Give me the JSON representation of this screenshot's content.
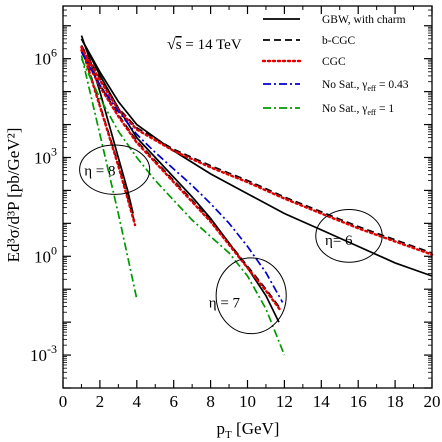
{
  "chart_data": {
    "type": "line",
    "xlabel_main": "p",
    "xlabel_sub": "T",
    "xlabel_unit": " [GeV]",
    "ylabel": "Ed³σ/d³P [pb/GeV²]",
    "xlim": [
      0,
      20
    ],
    "ylim_log10": [
      -4,
      7.6
    ],
    "y_scale": "log",
    "x_ticks": [
      0,
      2,
      4,
      6,
      8,
      10,
      12,
      14,
      16,
      18,
      20
    ],
    "x_tick_labels": [
      "0",
      "2",
      "4",
      "6",
      "8",
      "10",
      "12",
      "14",
      "16",
      "18",
      "20"
    ],
    "y_ticks": [
      {
        "base": "10",
        "exp": "6",
        "log10": 6
      },
      {
        "base": "10",
        "exp": "3",
        "log10": 3
      },
      {
        "base": "10",
        "exp": "0",
        "log10": 0
      },
      {
        "base": "10",
        "exp": "-3",
        "log10": -3
      }
    ],
    "legend_position": "top-right",
    "grid": false,
    "energy_label": {
      "sqrt": "s",
      "rest": " = 14 TeV"
    },
    "series": [
      {
        "name": "GBW, with charm",
        "color": "#000000",
        "dash": "solid",
        "curves": [
          {
            "x": [
              1.0,
              1.5,
              2.0,
              2.5,
              3.0,
              3.5,
              3.8
            ],
            "log10y": [
              6.7,
              5.9,
              5.0,
              4.0,
              3.0,
              2.0,
              1.3
            ]
          },
          {
            "x": [
              1.0,
              2.0,
              3.0,
              4.0,
              5.0,
              6.0,
              7.0,
              8.0,
              9.0,
              10.0,
              11.0,
              11.7
            ],
            "log10y": [
              6.6,
              5.5,
              4.5,
              3.6,
              3.0,
              2.4,
              1.8,
              1.15,
              0.4,
              -0.35,
              -1.2,
              -2.0
            ]
          },
          {
            "x": [
              1.0,
              2.0,
              3.0,
              4.0,
              6.0,
              8.0,
              10.0,
              12.0,
              14.0,
              16.0,
              18.0,
              20.0
            ],
            "log10y": [
              6.6,
              5.6,
              4.7,
              4.0,
              3.2,
              2.5,
              1.9,
              1.3,
              0.8,
              0.3,
              -0.2,
              -0.6
            ]
          }
        ]
      },
      {
        "name": "b-CGC",
        "color": "#000000",
        "dash": "dashed",
        "curves": [
          {
            "x": [
              1.0,
              1.5,
              2.0,
              2.5,
              3.0,
              3.5,
              3.9
            ],
            "log10y": [
              6.4,
              5.5,
              4.6,
              3.7,
              2.8,
              1.8,
              1.0
            ]
          },
          {
            "x": [
              1.0,
              2.0,
              3.0,
              4.0,
              5.0,
              6.0,
              7.0,
              8.0,
              9.0,
              10.0,
              11.0,
              11.8
            ],
            "log10y": [
              6.3,
              5.2,
              4.3,
              3.5,
              2.9,
              2.3,
              1.7,
              1.1,
              0.4,
              -0.3,
              -1.0,
              -1.6
            ]
          },
          {
            "x": [
              1.0,
              2.0,
              3.0,
              4.0,
              6.0,
              8.0,
              10.0,
              12.0,
              14.0,
              16.0,
              18.0,
              20.0
            ],
            "log10y": [
              6.4,
              5.4,
              4.5,
              3.9,
              3.25,
              2.75,
              2.3,
              1.8,
              1.35,
              0.9,
              0.5,
              0.1
            ]
          }
        ]
      },
      {
        "name": "CGC",
        "color": "#e00000",
        "dash": "dotted",
        "curves": [
          {
            "x": [
              1.0,
              1.5,
              2.0,
              2.5,
              3.0,
              3.5,
              3.9
            ],
            "log10y": [
              6.35,
              5.45,
              4.55,
              3.65,
              2.75,
              1.75,
              0.95
            ]
          },
          {
            "x": [
              1.0,
              2.0,
              3.0,
              4.0,
              5.0,
              6.0,
              7.0,
              8.0,
              9.0,
              10.0,
              11.0,
              11.8
            ],
            "log10y": [
              6.25,
              5.15,
              4.25,
              3.45,
              2.85,
              2.25,
              1.65,
              1.05,
              0.35,
              -0.35,
              -1.05,
              -1.65
            ]
          },
          {
            "x": [
              1.0,
              2.0,
              3.0,
              4.0,
              6.0,
              8.0,
              10.0,
              12.0,
              14.0,
              16.0,
              18.0,
              20.0
            ],
            "log10y": [
              6.35,
              5.35,
              4.45,
              3.85,
              3.2,
              2.7,
              2.25,
              1.75,
              1.3,
              0.85,
              0.45,
              0.05
            ]
          }
        ]
      },
      {
        "name": "No Sat., γ",
        "name_sub": "eff",
        "name_rest": " = 0.43",
        "color": "#0000cc",
        "dash": "dashdot",
        "curves": [
          {
            "x": [
              1.0,
              2.0,
              3.0,
              4.0,
              5.0,
              6.0,
              7.0,
              8.0,
              9.0,
              10.0,
              11.0,
              11.9
            ],
            "log10y": [
              6.2,
              5.2,
              4.4,
              3.7,
              3.15,
              2.65,
              2.15,
              1.6,
              1.0,
              0.3,
              -0.5,
              -1.4
            ]
          }
        ]
      },
      {
        "name": "No Sat., γ",
        "name_sub": "eff",
        "name_rest": " = 1",
        "color": "#009900",
        "dash": "dashdot",
        "curves": [
          {
            "x": [
              1.0,
              1.5,
              2.0,
              2.5,
              3.0,
              3.5,
              4.0
            ],
            "log10y": [
              6.1,
              4.9,
              3.7,
              2.5,
              1.3,
              0.0,
              -1.3
            ]
          },
          {
            "x": [
              1.0,
              2.0,
              3.0,
              4.0,
              5.0,
              6.0,
              7.0,
              8.0,
              9.0,
              10.0,
              11.0,
              12.0
            ],
            "log10y": [
              6.0,
              4.8,
              3.8,
              3.0,
              2.3,
              1.7,
              1.1,
              0.6,
              0.1,
              -0.6,
              -1.6,
              -3.0
            ]
          }
        ]
      }
    ],
    "annotations": [
      {
        "id": "eta8",
        "text_main": "η = 8",
        "ex": 2.8,
        "ey": 2.63,
        "rx": 1.9,
        "ry": 0.75,
        "lx": 1.15,
        "ly": 2.45
      },
      {
        "id": "eta7",
        "text_main": "η = 7",
        "ex": 10.2,
        "ey": -1.2,
        "rx": 1.9,
        "ry": 1.15,
        "lx": 7.9,
        "ly": -1.55
      },
      {
        "id": "eta6",
        "text_main": "η= 6",
        "ex": 15.5,
        "ey": 0.62,
        "rx": 1.8,
        "ry": 0.8,
        "lx": 14.2,
        "ly": 0.35
      }
    ]
  }
}
